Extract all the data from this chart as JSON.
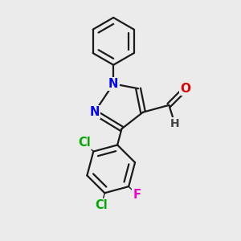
{
  "background_color": "#ebebeb",
  "bond_color": "#1a1a1a",
  "N_color": "#0000ff",
  "O_color": "#dd0000",
  "Cl_color": "#00aa00",
  "F_color": "#ee00cc",
  "H_color": "#444444",
  "bond_width": 1.6,
  "figsize": [
    3.0,
    3.0
  ],
  "dpi": 100,
  "xlim": [
    0,
    10
  ],
  "ylim": [
    0,
    10
  ]
}
